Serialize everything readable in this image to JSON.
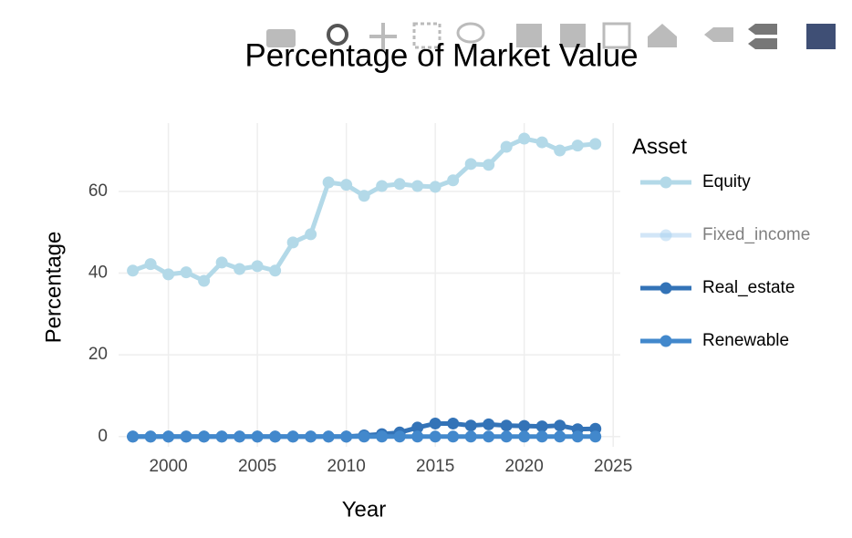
{
  "chart_data": {
    "type": "line",
    "title": "Percentage of Market Value",
    "x_label": "Year",
    "y_label": "Percentage",
    "legend_title": "Asset",
    "x": [
      1998,
      1999,
      2000,
      2001,
      2002,
      2003,
      2004,
      2005,
      2006,
      2007,
      2008,
      2009,
      2010,
      2011,
      2012,
      2013,
      2014,
      2015,
      2016,
      2017,
      2018,
      2019,
      2020,
      2021,
      2022,
      2023,
      2024
    ],
    "series": [
      {
        "name": "Equity",
        "color": "#b3d9e8",
        "values": [
          40.6,
          42.2,
          39.7,
          40.2,
          38.1,
          42.6,
          41.0,
          41.7,
          40.6,
          47.5,
          49.5,
          62.2,
          61.6,
          58.9,
          61.3,
          61.8,
          61.3,
          61.1,
          62.7,
          66.7,
          66.5,
          70.9,
          72.9,
          72.0,
          70.0,
          71.2,
          71.6
        ]
      },
      {
        "name": "Fixed_income",
        "color": "#a6cff0",
        "visible": "legendonly"
      },
      {
        "name": "Real_estate",
        "color": "#3373b7",
        "values": [
          0,
          0,
          0,
          0,
          0,
          0,
          0,
          0,
          0,
          0,
          0,
          0,
          0,
          0.3,
          0.6,
          1.0,
          2.2,
          3.2,
          3.2,
          2.7,
          3.0,
          2.7,
          2.6,
          2.5,
          2.7,
          1.8,
          1.9
        ]
      },
      {
        "name": "Renewable",
        "color": "#4288cc",
        "values": [
          0,
          0,
          0,
          0,
          0,
          0,
          0,
          0,
          0,
          0,
          0,
          0,
          0,
          0,
          0,
          0,
          0,
          0,
          0,
          0,
          0,
          0,
          0,
          0,
          0,
          0,
          0
        ]
      }
    ],
    "xlim": [
      1997.2,
      2025.4
    ],
    "ylim": [
      -2.5,
      76.7
    ],
    "xticks": [
      2000,
      2005,
      2010,
      2015,
      2020,
      2025
    ],
    "yticks": [
      0,
      20,
      40,
      60
    ],
    "grid": true
  }
}
